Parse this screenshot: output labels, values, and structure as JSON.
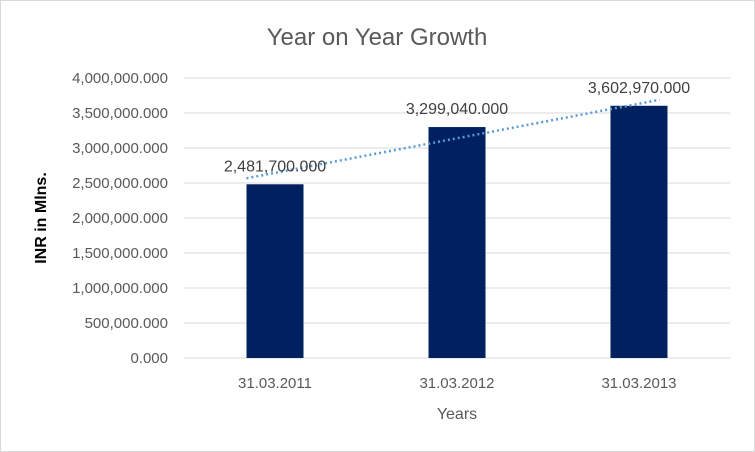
{
  "chart_data": {
    "type": "bar",
    "title": "Year on Year Growth",
    "xlabel": "Years",
    "ylabel": "INR in Mlns.",
    "categories": [
      "31.03.2011",
      "31.03.2012",
      "31.03.2013"
    ],
    "values": [
      2481700,
      3299040,
      3602970
    ],
    "data_labels": [
      "2,481,700.000",
      "3,299,040.000",
      "3,602,970.000"
    ],
    "ylim": [
      0,
      4000000
    ],
    "y_ticks": [
      0,
      500000,
      1000000,
      1500000,
      2000000,
      2500000,
      3000000,
      3500000,
      4000000
    ],
    "y_tick_labels": [
      "0.000",
      "500,000.000",
      "1,000,000.000",
      "1,500,000.000",
      "2,000,000.000",
      "2,500,000.000",
      "3,000,000.000",
      "3,500,000.000",
      "4,000,000.000"
    ],
    "grid": true,
    "legend": "none",
    "trendline": "linear-dotted",
    "colors": {
      "bar": "#002060",
      "trendline": "#5b9bd5",
      "grid": "#d9d9d9"
    }
  }
}
